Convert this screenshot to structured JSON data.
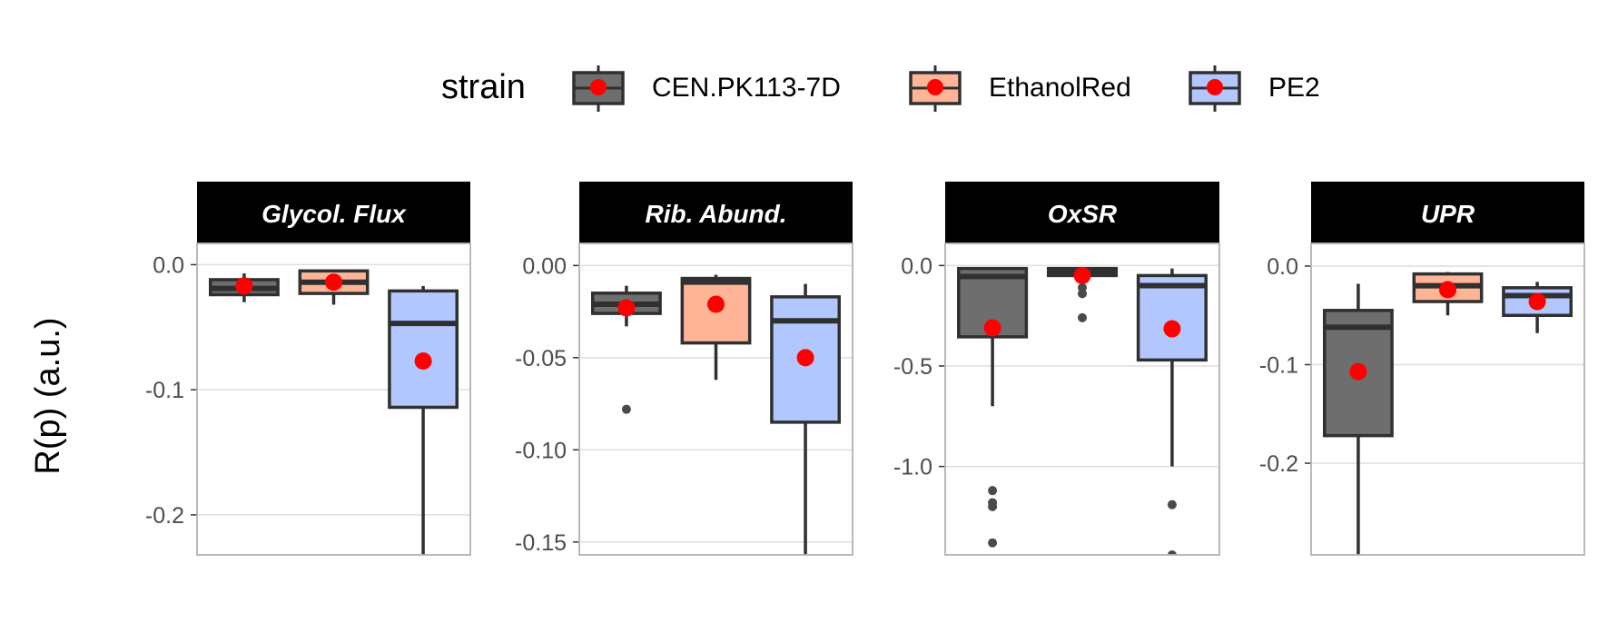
{
  "chart_data": {
    "type": "boxplot",
    "ylabel": "R(p) (a.u.)",
    "xlabel": "",
    "legend": {
      "title": "strain",
      "position": "top",
      "entries": [
        "CEN.PK113-7D",
        "EthanolRed",
        "PE2"
      ]
    },
    "colors": {
      "CEN.PK113-7D": "#6e6e6e",
      "EthanolRed": "#fdb497",
      "PE2": "#b3c7ff",
      "mean_point": "#ff0000",
      "box_stroke": "#303030",
      "strip_bg": "#000000"
    },
    "grid": true,
    "panels": [
      {
        "title": "Glycol. Flux",
        "ylim": [
          -0.232,
          0.017
        ],
        "ticks": [
          0.0,
          -0.1,
          -0.2
        ],
        "tick_labels": [
          "0.0",
          "-0.1",
          "-0.2"
        ],
        "boxes": [
          {
            "strain": "CEN.PK113-7D",
            "q1": -0.024,
            "median": -0.019,
            "q3": -0.012,
            "whisker_low": -0.03,
            "whisker_high": -0.007,
            "mean": -0.017,
            "outliers": []
          },
          {
            "strain": "EthanolRed",
            "q1": -0.023,
            "median": -0.014,
            "q3": -0.005,
            "whisker_low": -0.032,
            "whisker_high": -0.004,
            "mean": -0.014,
            "outliers": []
          },
          {
            "strain": "PE2",
            "q1": -0.114,
            "median": -0.047,
            "q3": -0.021,
            "whisker_low": -0.232,
            "whisker_high": -0.017,
            "mean": -0.077,
            "outliers": []
          }
        ]
      },
      {
        "title": "Rib. Abund.",
        "ylim": [
          -0.157,
          0.012
        ],
        "ticks": [
          0.0,
          -0.05,
          -0.1,
          -0.15
        ],
        "tick_labels": [
          "0.00",
          "-0.05",
          "-0.10",
          "-0.15"
        ],
        "boxes": [
          {
            "strain": "CEN.PK113-7D",
            "q1": -0.026,
            "median": -0.021,
            "q3": -0.015,
            "whisker_low": -0.033,
            "whisker_high": -0.011,
            "mean": -0.023,
            "outliers": [
              -0.078
            ]
          },
          {
            "strain": "EthanolRed",
            "q1": -0.042,
            "median": -0.009,
            "q3": -0.007,
            "whisker_low": -0.062,
            "whisker_high": -0.005,
            "mean": -0.021,
            "outliers": []
          },
          {
            "strain": "PE2",
            "q1": -0.085,
            "median": -0.03,
            "q3": -0.017,
            "whisker_low": -0.157,
            "whisker_high": -0.01,
            "mean": -0.05,
            "outliers": []
          }
        ]
      },
      {
        "title": "OxSR",
        "ylim": [
          -1.44,
          0.11
        ],
        "ticks": [
          0.0,
          -0.5,
          -1.0
        ],
        "tick_labels": [
          "0.0",
          "-0.5",
          "-1.0"
        ],
        "boxes": [
          {
            "strain": "CEN.PK113-7D",
            "q1": -0.355,
            "median": -0.055,
            "q3": -0.015,
            "whisker_low": -0.7,
            "whisker_high": -0.015,
            "mean": -0.31,
            "outliers": [
              -1.12,
              -1.18,
              -1.2,
              -1.38
            ]
          },
          {
            "strain": "EthanolRed",
            "q1": -0.05,
            "median": -0.03,
            "q3": -0.015,
            "whisker_low": -0.075,
            "whisker_high": -0.01,
            "mean": -0.05,
            "outliers": [
              -0.11,
              -0.14,
              -0.26
            ]
          },
          {
            "strain": "PE2",
            "q1": -0.47,
            "median": -0.1,
            "q3": -0.05,
            "whisker_low": -1.0,
            "whisker_high": -0.015,
            "mean": -0.315,
            "outliers": [
              -1.19,
              -1.44
            ]
          }
        ]
      },
      {
        "title": "UPR",
        "ylim": [
          -0.293,
          0.023
        ],
        "ticks": [
          0.0,
          -0.1,
          -0.2
        ],
        "tick_labels": [
          "0.0",
          "-0.1",
          "-0.2"
        ],
        "boxes": [
          {
            "strain": "CEN.PK113-7D",
            "q1": -0.172,
            "median": -0.062,
            "q3": -0.045,
            "whisker_low": -0.293,
            "whisker_high": -0.018,
            "mean": -0.107,
            "outliers": []
          },
          {
            "strain": "EthanolRed",
            "q1": -0.036,
            "median": -0.02,
            "q3": -0.008,
            "whisker_low": -0.05,
            "whisker_high": -0.006,
            "mean": -0.024,
            "outliers": []
          },
          {
            "strain": "PE2",
            "q1": -0.05,
            "median": -0.03,
            "q3": -0.022,
            "whisker_low": -0.068,
            "whisker_high": -0.016,
            "mean": -0.036,
            "outliers": []
          }
        ]
      }
    ]
  }
}
